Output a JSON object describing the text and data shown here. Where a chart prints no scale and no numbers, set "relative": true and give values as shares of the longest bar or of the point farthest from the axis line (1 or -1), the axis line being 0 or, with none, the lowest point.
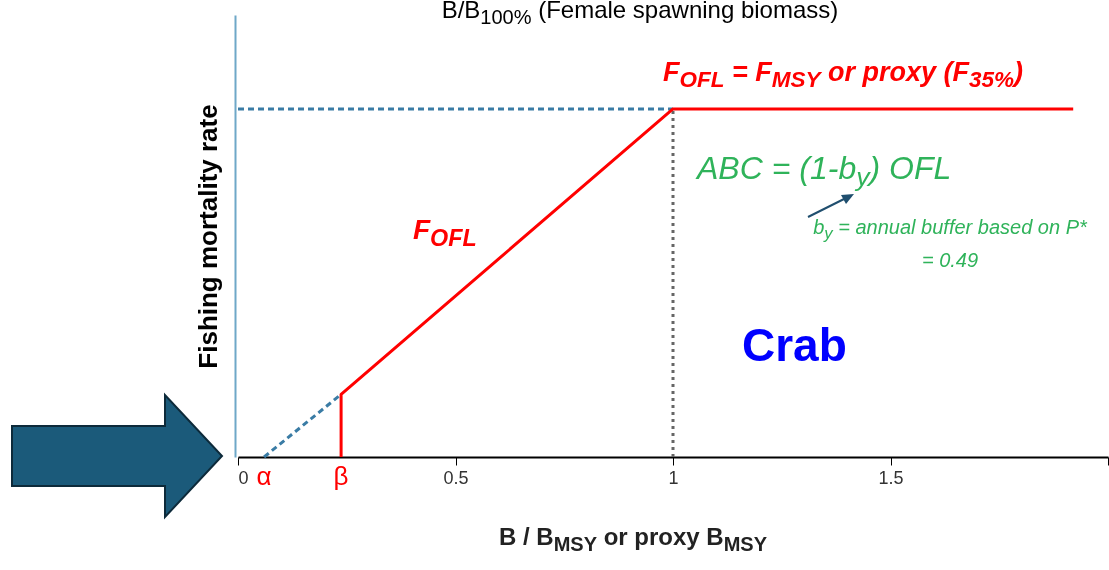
{
  "chart_data": {
    "type": "line",
    "relative": true,
    "title": "B/B$_{100%}$ (Female spawning biomass)",
    "xlabel": "B / B$_{MSY}$ or proxy B$_{MSY}$",
    "ylabel": "Fishing mortality rate",
    "xlim": [
      0,
      2
    ],
    "xticks": [
      0,
      0.5,
      1,
      1.5,
      {
        "value": 2,
        "label": null
      }
    ],
    "series": [
      {
        "color": "#3a7ca5",
        "line_style": "dashed",
        "x": [
          0.06,
          0.237
        ],
        "values": [
          0,
          0.18
        ]
      },
      {
        "color": "#3a7ca5",
        "line_style": "dashed",
        "x": [
          0,
          1
        ],
        "values": [
          1,
          1
        ]
      },
      {
        "color": "#666666",
        "line_style": "dotted",
        "x": [
          1,
          1
        ],
        "values": [
          0,
          1
        ]
      },
      {
        "color": "#ff0000",
        "line_style": "solid",
        "x": [
          0.237,
          0.237,
          1,
          1.92
        ],
        "values": [
          0,
          0.18,
          1,
          1
        ]
      }
    ],
    "annotations": [
      "F$_{OFL}$ = F$_{MSY}$ or proxy (F$_{35%}$)",
      "F$_{OFL}$",
      {
        "text": "α",
        "x": 0.06,
        "y": 0
      },
      {
        "text": "β",
        "x": 0.237,
        "y": 0
      },
      "ABC = (1-b$_{y}$) OFL",
      "b$_{y}$ = annual buffer based on P* = 0.49",
      "Crab"
    ]
  }
}
